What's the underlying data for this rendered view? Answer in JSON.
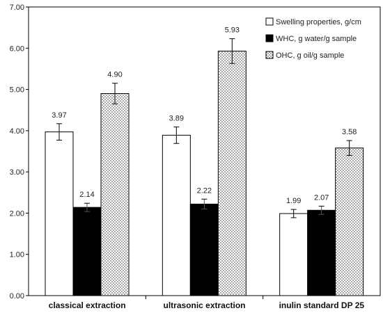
{
  "chart_data": {
    "type": "bar",
    "title": "",
    "xlabel": "",
    "ylabel": "",
    "categories": [
      "classical extraction",
      "ultrasonic extraction",
      "inulin standard DP 25"
    ],
    "series": [
      {
        "name": "Swelling properties, g/cm",
        "values": [
          3.97,
          3.89,
          1.99
        ],
        "errors": [
          0.2,
          0.2,
          0.1
        ],
        "labels": [
          "3.97",
          "3.89",
          "1.99"
        ],
        "fill": "white"
      },
      {
        "name": "WHC, g water/g sample",
        "values": [
          2.14,
          2.22,
          2.07
        ],
        "errors": [
          0.1,
          0.12,
          0.1
        ],
        "labels": [
          "2.14",
          "2.22",
          "2.07"
        ],
        "fill": "black"
      },
      {
        "name": "OHC, g oil/g sample",
        "values": [
          4.9,
          5.93,
          3.58
        ],
        "errors": [
          0.25,
          0.3,
          0.18
        ],
        "labels": [
          "4.90",
          "5.93",
          "3.58"
        ],
        "fill": "dotted"
      }
    ],
    "ylim": [
      0,
      7
    ],
    "yticks": [
      "0.00",
      "1.00",
      "2.00",
      "3.00",
      "4.00",
      "5.00",
      "6.00",
      "7.00"
    ],
    "grid": false,
    "legend_position": "top-right",
    "colors": {
      "border": "#000000",
      "white_fill": "#ffffff",
      "black_fill": "#000000",
      "dot": "#333333"
    }
  }
}
